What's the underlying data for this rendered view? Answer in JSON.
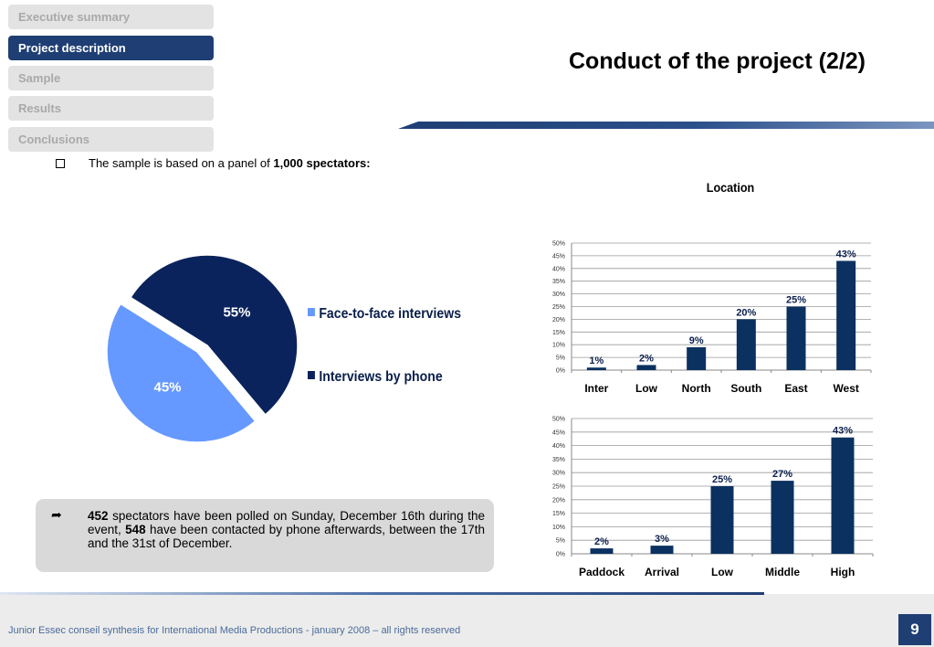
{
  "nav": [
    {
      "label": "Executive summary",
      "active": false
    },
    {
      "label": "Project description",
      "active": true
    },
    {
      "label": "Sample",
      "active": false
    },
    {
      "label": "Results",
      "active": false
    },
    {
      "label": "Conclusions",
      "active": false
    }
  ],
  "title": "Conduct of the project (2/2)",
  "bullet": {
    "prefix": "The sample is based on a panel of ",
    "bold": "1,000 spectators:"
  },
  "pie": {
    "slices": [
      {
        "label": "Face-to-face interviews",
        "value": 45,
        "text": "45%",
        "color": "#6699ff"
      },
      {
        "label": "Interviews by phone",
        "value": 55,
        "text": "55%",
        "color": "#0b235c"
      }
    ]
  },
  "chart_data": [
    {
      "type": "pie",
      "categories": [
        "Face-to-face interviews",
        "Interviews by phone"
      ],
      "values": [
        45,
        55
      ],
      "title": ""
    },
    {
      "type": "bar",
      "title": "Location",
      "categories": [
        "Inter",
        "Low",
        "North",
        "South",
        "East",
        "West"
      ],
      "values": [
        1,
        2,
        9,
        20,
        25,
        43
      ],
      "labels": [
        "1%",
        "2%",
        "9%",
        "20%",
        "25%",
        "43%"
      ],
      "ylim": [
        0,
        50
      ],
      "ticks": [
        "0%",
        "5%",
        "10%",
        "15%",
        "20%",
        "25%",
        "30%",
        "35%",
        "40%",
        "45%",
        "50%"
      ],
      "grid": true
    },
    {
      "type": "bar",
      "title": "",
      "categories": [
        "Paddock",
        "Arrival",
        "Low",
        "Middle",
        "High"
      ],
      "values": [
        2,
        3,
        25,
        27,
        43
      ],
      "labels": [
        "2%",
        "3%",
        "25%",
        "27%",
        "43%"
      ],
      "ylim": [
        0,
        50
      ],
      "ticks": [
        "0%",
        "5%",
        "10%",
        "15%",
        "20%",
        "25%",
        "30%",
        "35%",
        "40%",
        "45%",
        "50%"
      ],
      "grid": true
    }
  ],
  "note": {
    "n1": "452",
    "t1": " spectators have been polled on Sunday, December 16th during the event, ",
    "n2": "548",
    "t2": " have been contacted by phone afterwards, between  the 17th and the 31st of December."
  },
  "footer": "Junior Essec conseil synthesis for International Media Productions - january 2008 – all rights reserved",
  "page_number": "9",
  "colors": {
    "navy": "#1f3f74",
    "bar": "#0b3160",
    "light_blue": "#6699ff"
  }
}
